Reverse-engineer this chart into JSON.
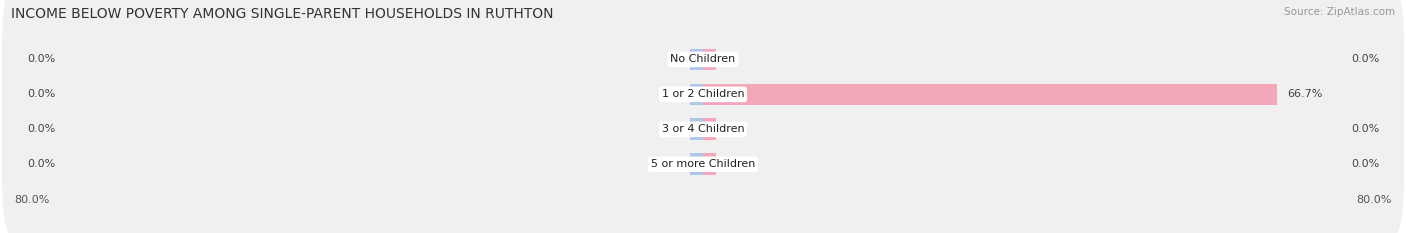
{
  "title": "INCOME BELOW POVERTY AMONG SINGLE-PARENT HOUSEHOLDS IN RUTHTON",
  "source": "Source: ZipAtlas.com",
  "categories": [
    "No Children",
    "1 or 2 Children",
    "3 or 4 Children",
    "5 or more Children"
  ],
  "single_father": [
    0.0,
    0.0,
    0.0,
    0.0
  ],
  "single_mother": [
    0.0,
    66.7,
    0.0,
    0.0
  ],
  "axis_max": 80.0,
  "father_color": "#aec6e8",
  "mother_color": "#f4a7b9",
  "row_bg_color": "#f0f0f0",
  "title_fontsize": 10,
  "source_fontsize": 7.5,
  "label_fontsize": 8,
  "tick_fontsize": 8,
  "legend_fontsize": 8.5,
  "tiny_bar": 1.5
}
